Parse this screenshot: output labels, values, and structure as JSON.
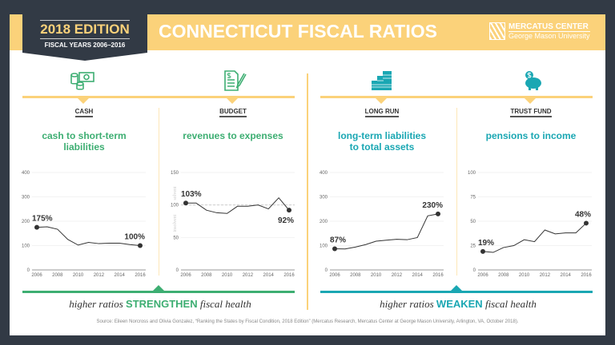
{
  "header": {
    "edition": "2018 EDITION",
    "fiscal_years": "FISCAL YEARS 2006–2016",
    "title": "CONNECTICUT FISCAL RATIOS",
    "logo_line1": "MERCATUS CENTER",
    "logo_line2": "George Mason University"
  },
  "colors": {
    "green": "#3dae72",
    "teal": "#1aa7b3",
    "yellow": "#fbd27a",
    "dark": "#323a45"
  },
  "panels": [
    {
      "category": "CASH",
      "ratio": "cash to short-term liabilities",
      "icon": "cash-icon",
      "color": "green"
    },
    {
      "category": "BUDGET",
      "ratio": "revenues to expenses",
      "icon": "budget-document-icon",
      "color": "green"
    },
    {
      "category": "LONG RUN",
      "ratio": "long-term liabilities to total assets",
      "icon": "buildings-icon",
      "color": "teal"
    },
    {
      "category": "TRUST FUND",
      "ratio": "pensions to income",
      "icon": "piggy-bank-icon",
      "color": "teal"
    }
  ],
  "chart_data": [
    {
      "type": "line",
      "x": [
        2006,
        2007,
        2008,
        2009,
        2010,
        2011,
        2012,
        2013,
        2014,
        2015,
        2016
      ],
      "values": [
        175,
        177,
        167,
        125,
        102,
        113,
        108,
        110,
        110,
        104,
        100
      ],
      "ylim": [
        0,
        400
      ],
      "yticks": [
        "0",
        "100",
        "200",
        "300",
        "400"
      ],
      "xticks": [
        "2006",
        "2008",
        "2010",
        "2012",
        "2014",
        "2016"
      ],
      "start_label": "175%",
      "end_label": "100%",
      "grid": true
    },
    {
      "type": "line",
      "x": [
        2006,
        2007,
        2008,
        2009,
        2010,
        2011,
        2012,
        2013,
        2014,
        2015,
        2016
      ],
      "values": [
        103,
        103,
        92,
        88,
        87,
        98,
        98,
        100,
        94,
        111,
        92
      ],
      "ylim": [
        0,
        150
      ],
      "yticks": [
        "0",
        "50",
        "100",
        "150"
      ],
      "xticks": [
        "2006",
        "2008",
        "2010",
        "2012",
        "2014",
        "2016"
      ],
      "start_label": "103%",
      "end_label": "92%",
      "reference_line": 100,
      "above_label": "solvent",
      "below_label": "insolvent",
      "grid": true
    },
    {
      "type": "line",
      "x": [
        2006,
        2007,
        2008,
        2009,
        2010,
        2011,
        2012,
        2013,
        2014,
        2015,
        2016
      ],
      "values": [
        87,
        86,
        94,
        104,
        118,
        122,
        126,
        124,
        133,
        222,
        230
      ],
      "ylim": [
        0,
        400
      ],
      "yticks": [
        "0",
        "100",
        "200",
        "300",
        "400"
      ],
      "xticks": [
        "2006",
        "2008",
        "2010",
        "2012",
        "2014",
        "2016"
      ],
      "start_label": "87%",
      "end_label": "230%",
      "grid": true
    },
    {
      "type": "line",
      "x": [
        2006,
        2007,
        2008,
        2009,
        2010,
        2011,
        2012,
        2013,
        2014,
        2015,
        2016
      ],
      "values": [
        19,
        18,
        23,
        25,
        31,
        29,
        41,
        37,
        38,
        38,
        48
      ],
      "ylim": [
        0,
        100
      ],
      "yticks": [
        "0",
        "25",
        "50",
        "75",
        "100"
      ],
      "xticks": [
        "2006",
        "2008",
        "2010",
        "2012",
        "2014",
        "2016"
      ],
      "start_label": "19%",
      "end_label": "48%",
      "grid": true
    }
  ],
  "footer": {
    "left_pre": "higher ratios ",
    "left_em": "STRENGTHEN",
    "left_post": " fiscal health",
    "right_pre": "higher ratios ",
    "right_em": "WEAKEN",
    "right_post": " fiscal health",
    "source": "Source: Eileen Norcross and Olivia Gonzalez, “Ranking the States by Fiscal Condition, 2018 Edition” (Mercatus Research, Mercatus Center at George Mason University, Arlington, VA, October 2018)."
  }
}
